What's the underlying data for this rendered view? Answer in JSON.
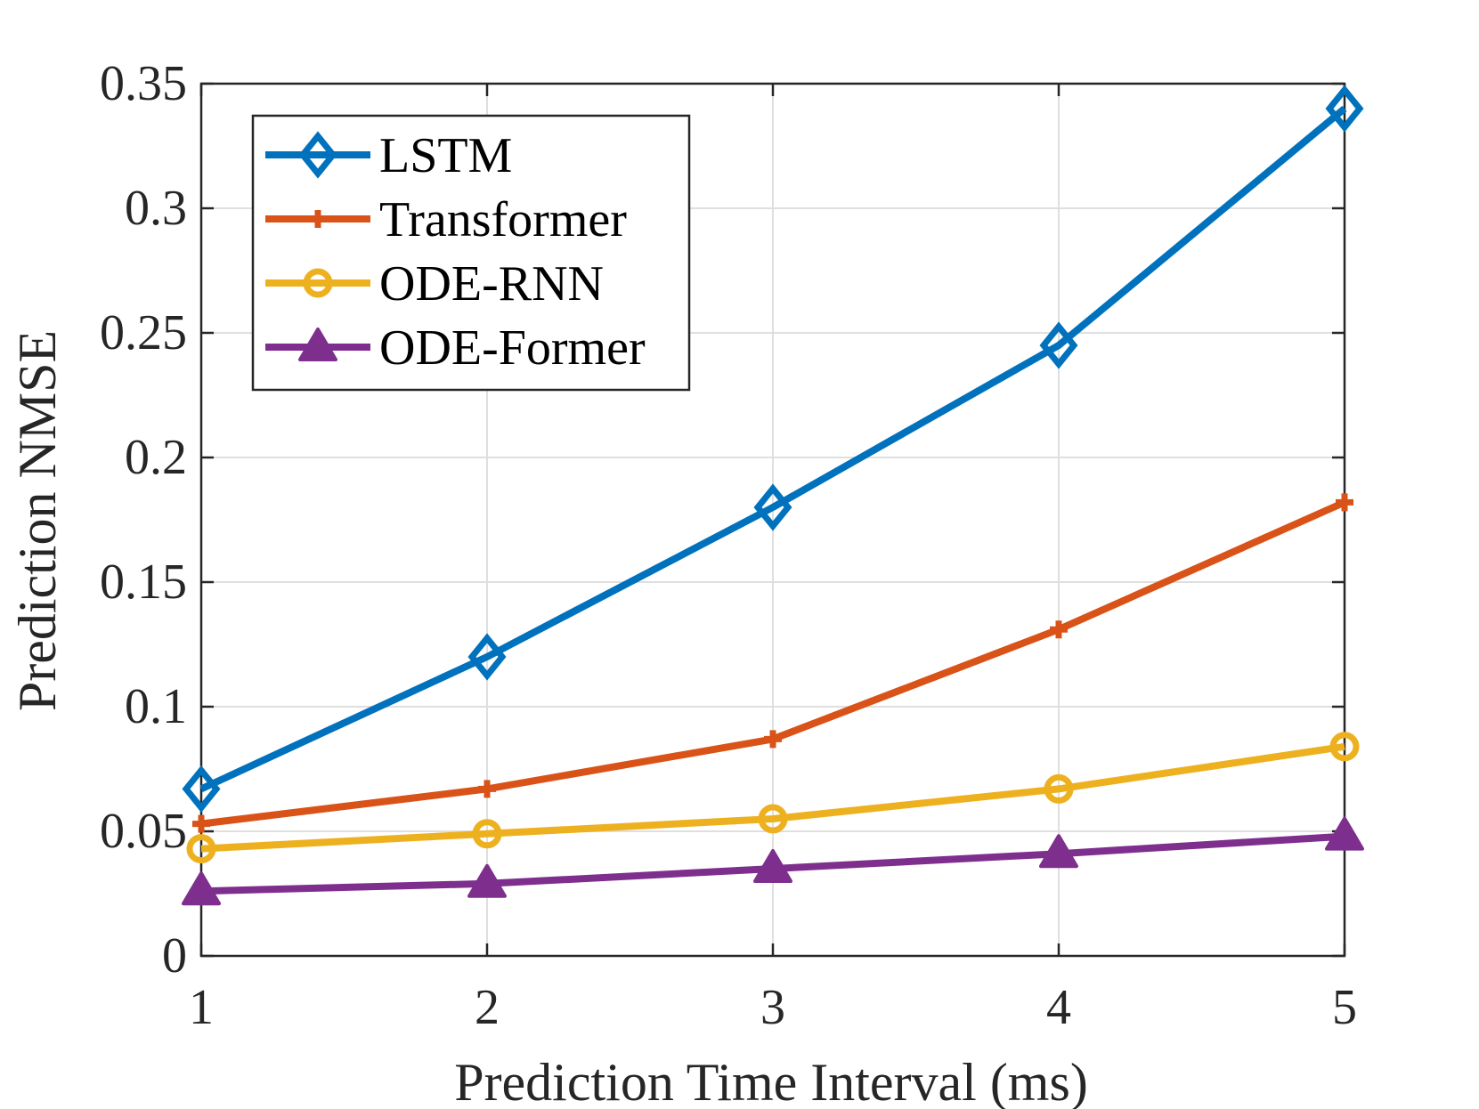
{
  "chart_data": {
    "type": "line",
    "title": "",
    "xlabel": "Prediction Time Interval (ms)",
    "ylabel": "Prediction NMSE",
    "x": [
      1,
      2,
      3,
      4,
      5
    ],
    "xlim": [
      1,
      5
    ],
    "ylim": [
      0,
      0.35
    ],
    "xticks": [
      "1",
      "2",
      "3",
      "4",
      "5"
    ],
    "yticks": [
      "0",
      "0.05",
      "0.1",
      "0.15",
      "0.2",
      "0.25",
      "0.3",
      "0.35"
    ],
    "ytick_values": [
      0,
      0.05,
      0.1,
      0.15,
      0.2,
      0.25,
      0.3,
      0.35
    ],
    "grid": true,
    "legend_position": "top-left",
    "series": [
      {
        "name": "LSTM",
        "color": "#0072BD",
        "marker": "diamond",
        "values": [
          0.067,
          0.12,
          0.18,
          0.245,
          0.34
        ]
      },
      {
        "name": "Transformer",
        "color": "#D95319",
        "marker": "plus",
        "values": [
          0.053,
          0.067,
          0.087,
          0.131,
          0.182
        ]
      },
      {
        "name": "ODE-RNN",
        "color": "#EDB120",
        "marker": "circle",
        "values": [
          0.043,
          0.049,
          0.055,
          0.067,
          0.084
        ]
      },
      {
        "name": "ODE-Former",
        "color": "#7E2F8E",
        "marker": "triangle",
        "values": [
          0.026,
          0.029,
          0.035,
          0.041,
          0.048
        ]
      }
    ]
  }
}
